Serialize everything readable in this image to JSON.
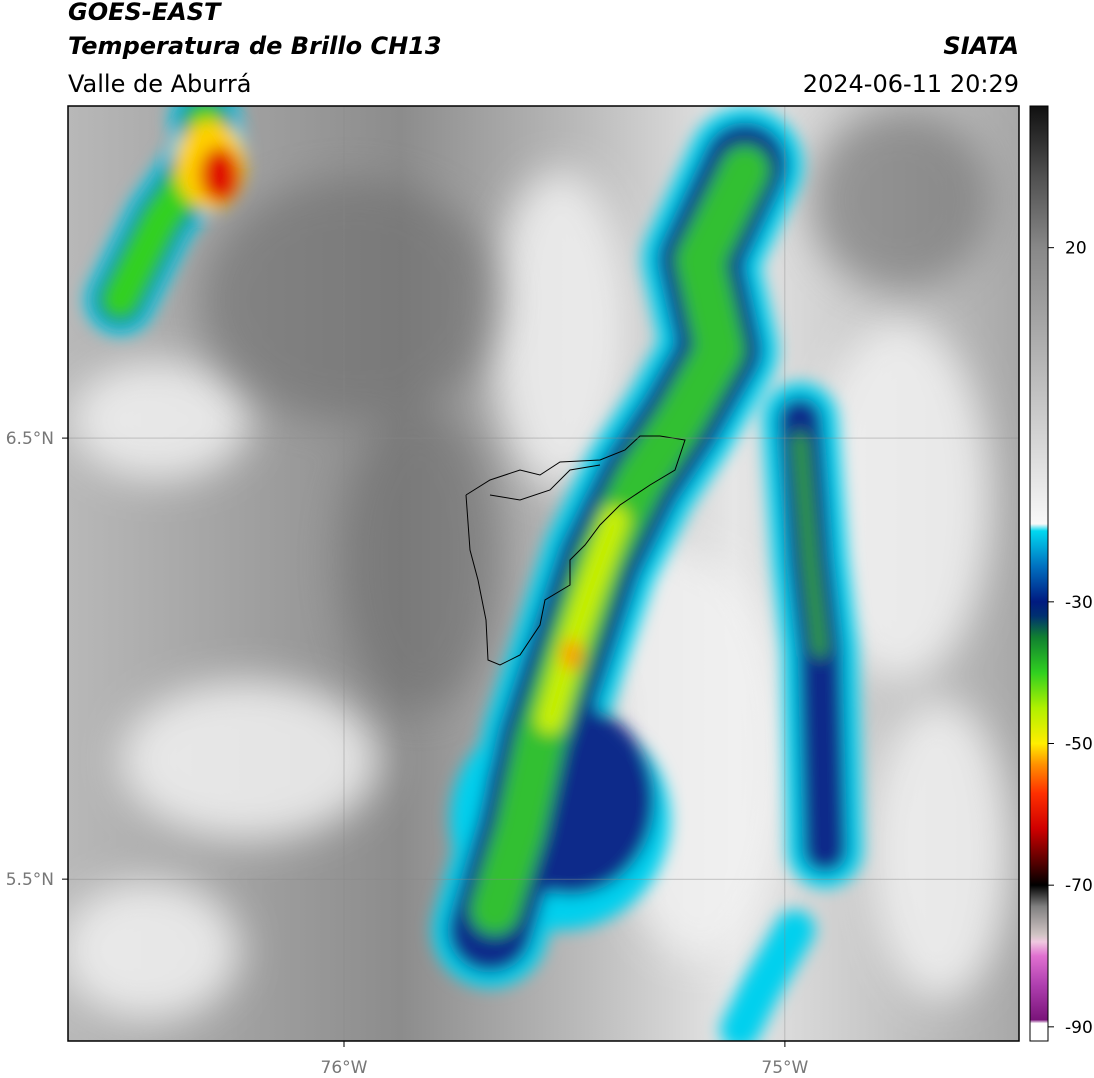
{
  "chart_data": {
    "type": "map",
    "title": "GOES-EAST",
    "subtitle": "Temperatura de Brillo CH13",
    "region": "Valle de Aburrá",
    "source": "SIATA",
    "datetime": "2024-06-11 20:29",
    "xlim": [
      -76.626,
      -74.469
    ],
    "ylim": [
      5.133,
      7.253
    ],
    "xticks": [
      {
        "value": -76,
        "label": "76°W"
      },
      {
        "value": -75,
        "label": "75°W"
      }
    ],
    "yticks": [
      {
        "value": 6.5,
        "label": "6.5°N"
      },
      {
        "value": 5.5,
        "label": "5.5°N"
      }
    ],
    "grid": true,
    "colorbar": {
      "lim": [
        -92,
        40
      ],
      "ticks": [
        20,
        -30,
        -50,
        -70,
        -90
      ],
      "colormap": [
        {
          "value": -92,
          "color": "#ffffff"
        },
        {
          "value": -89.5,
          "color": "#ffffff"
        },
        {
          "value": -89,
          "color": "#7a147a"
        },
        {
          "value": -84,
          "color": "#b040b0"
        },
        {
          "value": -80,
          "color": "#e070d0"
        },
        {
          "value": -78,
          "color": "#f0c8e0"
        },
        {
          "value": -77,
          "color": "#d0c4c4"
        },
        {
          "value": -73,
          "color": "#808080"
        },
        {
          "value": -70,
          "color": "#000000"
        },
        {
          "value": -67,
          "color": "#500000"
        },
        {
          "value": -62,
          "color": "#d00000"
        },
        {
          "value": -57,
          "color": "#ff3000"
        },
        {
          "value": -53,
          "color": "#ff9000"
        },
        {
          "value": -50,
          "color": "#ffee00"
        },
        {
          "value": -45,
          "color": "#b0f000"
        },
        {
          "value": -40,
          "color": "#30d020"
        },
        {
          "value": -35,
          "color": "#108030"
        },
        {
          "value": -32,
          "color": "#003070"
        },
        {
          "value": -30,
          "color": "#001a80"
        },
        {
          "value": -25,
          "color": "#0070c0"
        },
        {
          "value": -20,
          "color": "#00d8f0"
        },
        {
          "value": -19,
          "color": "#f8f8f8"
        },
        {
          "value": 0,
          "color": "#c0c0c0"
        },
        {
          "value": 20,
          "color": "#888888"
        },
        {
          "value": 30,
          "color": "#505050"
        },
        {
          "value": 40,
          "color": "#101010"
        }
      ]
    }
  }
}
